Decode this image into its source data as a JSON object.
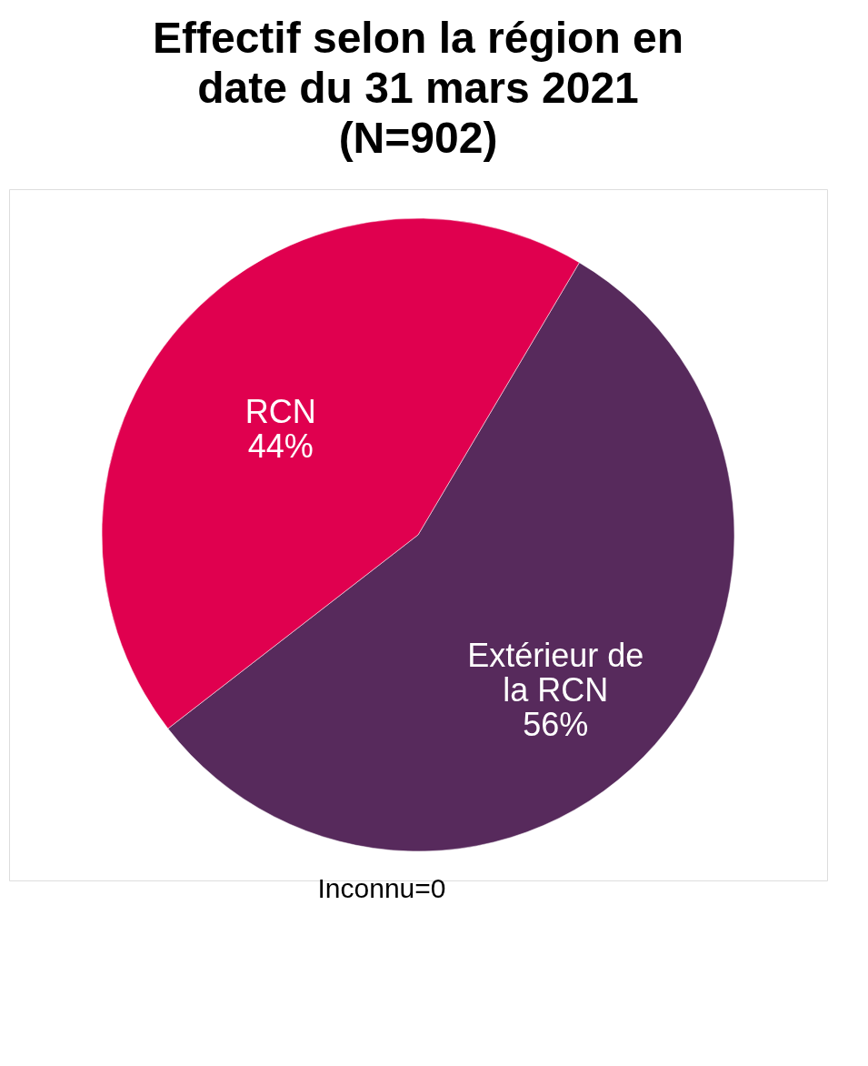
{
  "chart_data": {
    "type": "pie",
    "title": [
      "Effectif selon la région en",
      "date du 31 mars 2021",
      "(N=902)"
    ],
    "categories": [
      "Extérieur de la RCN",
      "RCN"
    ],
    "values": [
      56,
      44
    ],
    "colors": [
      "#572a5c",
      "#e0004f"
    ],
    "value_labels": [
      "56%",
      "44%"
    ],
    "legend": false,
    "annotations": [
      "Inconnu=0"
    ]
  }
}
